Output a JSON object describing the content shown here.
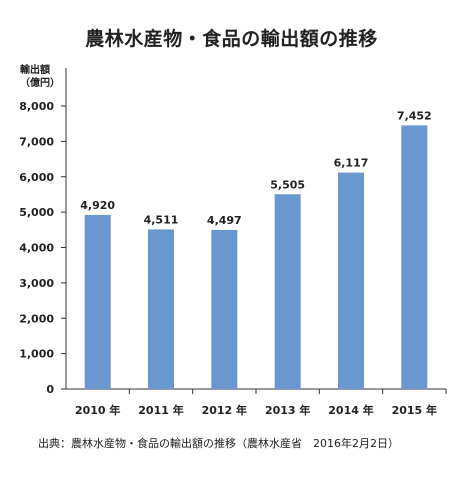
{
  "chart_data": {
    "type": "bar",
    "title": "農林水産物・食品の輸出額の推移",
    "ylabel_line1": "輸出額",
    "ylabel_line2": "（億円）",
    "categories": [
      "2010 年",
      "2011 年",
      "2012 年",
      "2013 年",
      "2014 年",
      "2015 年"
    ],
    "values": [
      4920,
      4511,
      4497,
      5505,
      6117,
      7452
    ],
    "value_labels": [
      "4,920",
      "4,511",
      "4,497",
      "5,505",
      "6,117",
      "7,452"
    ],
    "ylim": [
      0,
      8000
    ],
    "yticks": [
      0,
      1000,
      2000,
      3000,
      4000,
      5000,
      6000,
      7000,
      8000
    ],
    "ytick_labels": [
      "0",
      "1,000",
      "2,000",
      "3,000",
      "4,000",
      "5,000",
      "6,000",
      "7,000",
      "8,000"
    ],
    "bar_color": "#6a97cf",
    "grid": false,
    "source": "出典：農林水産物・食品の輸出額の推移（農林水産省　2016年2月2日）"
  }
}
